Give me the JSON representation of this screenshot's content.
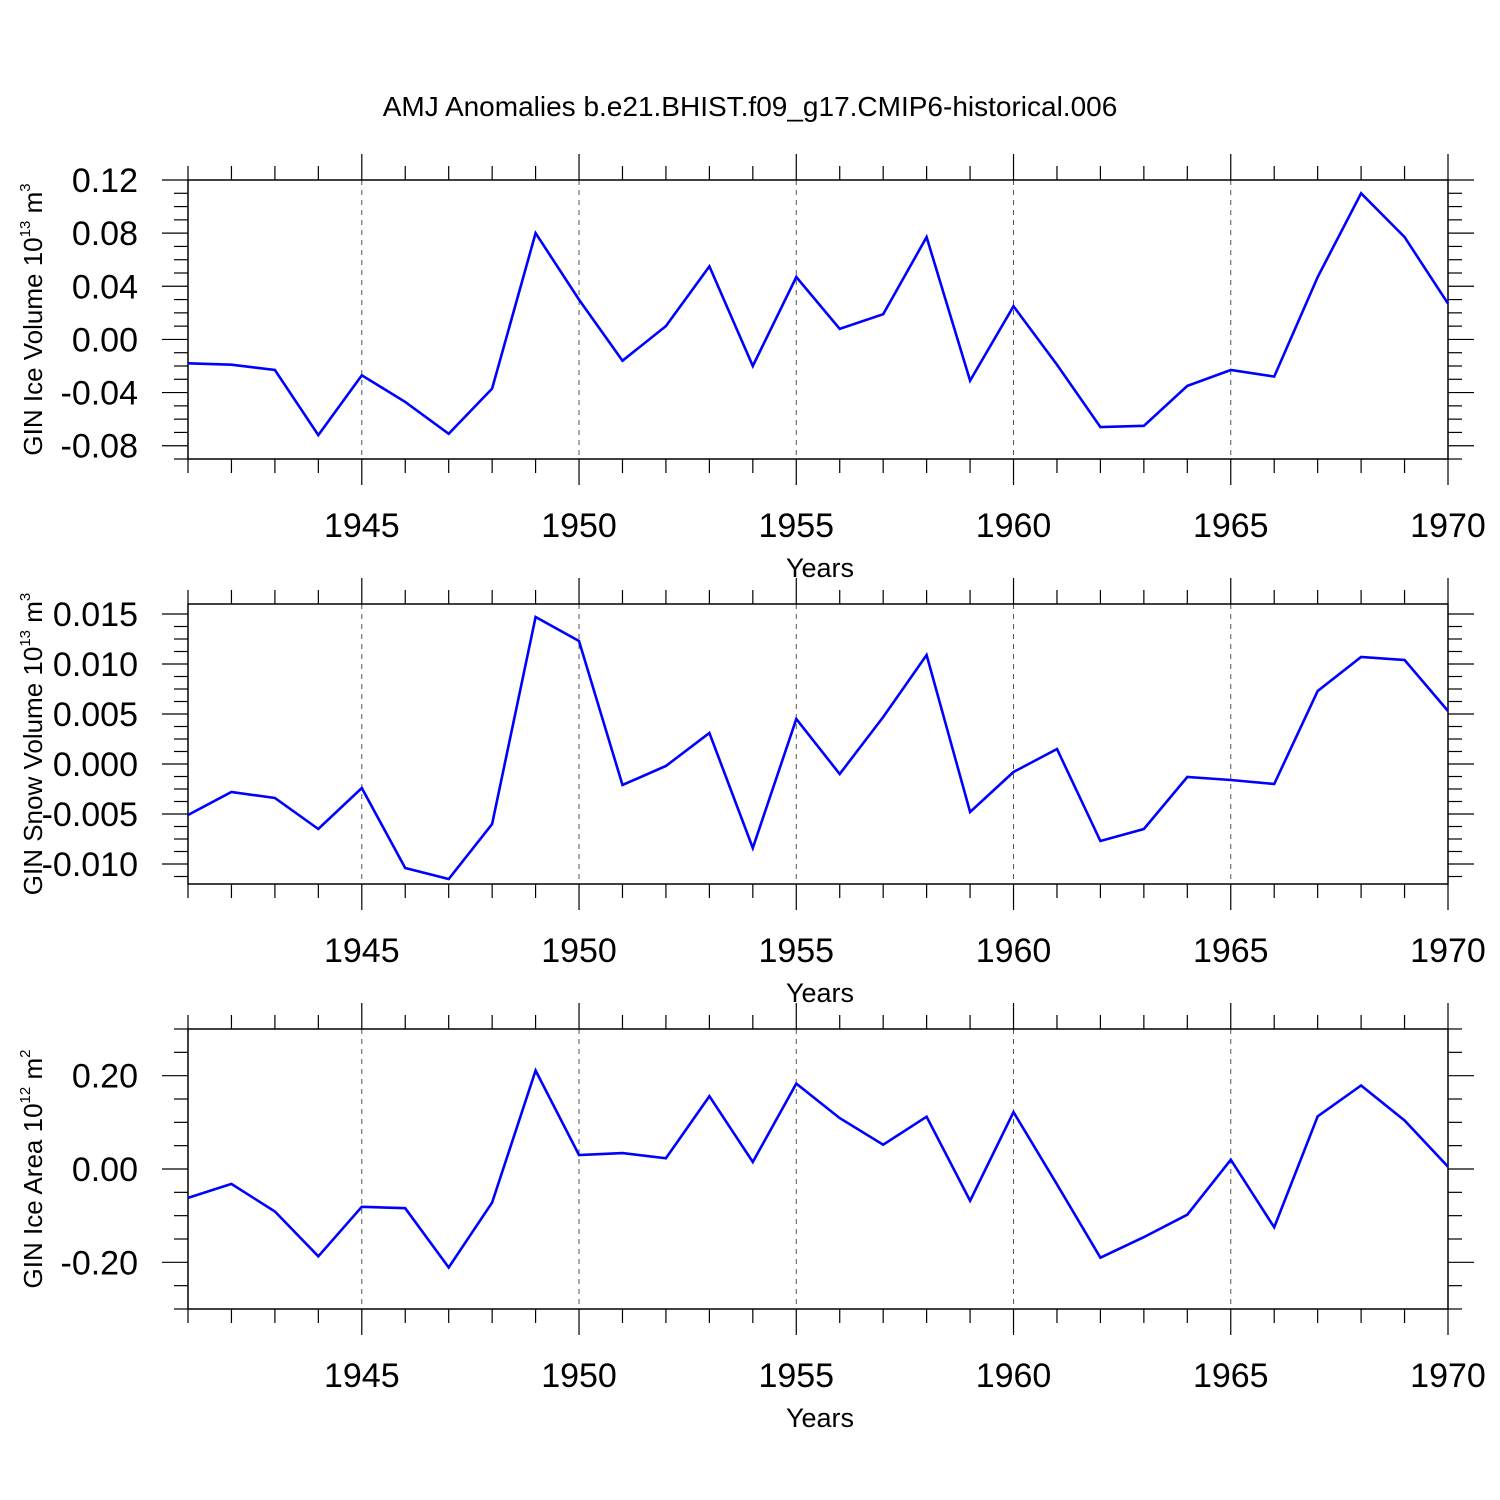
{
  "title": "AMJ Anomalies b.e21.BHIST.f09_g17.CMIP6-historical.006",
  "colors": {
    "line": "#0000ff",
    "axis": "#000000",
    "grid": "#555555"
  },
  "chart_data": [
    {
      "type": "line",
      "title": "AMJ Anomalies b.e21.BHIST.f09_g17.CMIP6-historical.006",
      "xlabel": "Years",
      "ylabel": {
        "text": "GIN Ice Volume 10",
        "exponent": "13",
        "unit": " m",
        "unit_exponent": "3"
      },
      "xlim": [
        1941,
        1970
      ],
      "ylim": [
        -0.09,
        0.12
      ],
      "xticks": [
        1945,
        1950,
        1955,
        1960,
        1965,
        1970
      ],
      "yticks": [
        0.12,
        0.08,
        0.04,
        0.0,
        -0.04,
        -0.08
      ],
      "ytick_labels": [
        "0.12",
        "0.08",
        "0.04",
        "0.00",
        "-0.04",
        "-0.08"
      ],
      "grid": "vertical dashed at major x ticks",
      "series": [
        {
          "x": [
            1941,
            1942,
            1943,
            1944,
            1945,
            1946,
            1947,
            1948,
            1949,
            1950,
            1951,
            1952,
            1953,
            1954,
            1955,
            1956,
            1957,
            1958,
            1959,
            1960,
            1961,
            1962,
            1963,
            1964,
            1965,
            1966,
            1967,
            1968,
            1969,
            1970
          ],
          "values": [
            -0.018,
            -0.019,
            -0.023,
            -0.072,
            -0.027,
            -0.047,
            -0.071,
            -0.037,
            0.08,
            0.03,
            -0.016,
            0.01,
            0.055,
            -0.02,
            0.047,
            0.008,
            0.019,
            0.077,
            -0.031,
            0.025,
            -0.019,
            -0.066,
            -0.065,
            -0.035,
            -0.023,
            -0.028,
            0.047,
            0.11,
            0.077,
            0.027
          ]
        }
      ]
    },
    {
      "type": "line",
      "xlabel": "Years",
      "ylabel": {
        "text": "GIN Snow Volume 10",
        "exponent": "13",
        "unit": " m",
        "unit_exponent": "3"
      },
      "xlim": [
        1941,
        1970
      ],
      "ylim": [
        -0.012,
        0.016
      ],
      "xticks": [
        1945,
        1950,
        1955,
        1960,
        1965,
        1970
      ],
      "yticks": [
        0.015,
        0.01,
        0.005,
        0.0,
        -0.005,
        -0.01
      ],
      "ytick_labels": [
        "0.015",
        "0.010",
        "0.005",
        "0.000",
        "-0.005",
        "-0.010"
      ],
      "grid": "vertical dashed at major x ticks",
      "series": [
        {
          "x": [
            1941,
            1942,
            1943,
            1944,
            1945,
            1946,
            1947,
            1948,
            1949,
            1950,
            1951,
            1952,
            1953,
            1954,
            1955,
            1956,
            1957,
            1958,
            1959,
            1960,
            1961,
            1962,
            1963,
            1964,
            1965,
            1966,
            1967,
            1968,
            1969,
            1970
          ],
          "values": [
            -0.0051,
            -0.0028,
            -0.0034,
            -0.0065,
            -0.0024,
            -0.0104,
            -0.0115,
            -0.006,
            0.0147,
            0.0123,
            -0.0021,
            -0.0002,
            0.0031,
            -0.0084,
            0.0045,
            -0.001,
            0.0047,
            0.0109,
            -0.0048,
            -0.0008,
            0.0015,
            -0.0077,
            -0.0065,
            -0.0013,
            -0.0016,
            -0.002,
            0.0073,
            0.0107,
            0.0104,
            0.0053
          ]
        }
      ]
    },
    {
      "type": "line",
      "xlabel": "Years",
      "ylabel": {
        "text": "GIN Ice Area 10",
        "exponent": "12",
        "unit": " m",
        "unit_exponent": "2"
      },
      "xlim": [
        1941,
        1970
      ],
      "ylim": [
        -0.3,
        0.3
      ],
      "xticks": [
        1945,
        1950,
        1955,
        1960,
        1965,
        1970
      ],
      "yticks": [
        0.2,
        0.0,
        -0.2
      ],
      "ytick_labels": [
        "0.20",
        "0.00",
        "-0.20"
      ],
      "grid": "vertical dashed at major x ticks",
      "series": [
        {
          "x": [
            1941,
            1942,
            1943,
            1944,
            1945,
            1946,
            1947,
            1948,
            1949,
            1950,
            1951,
            1952,
            1953,
            1954,
            1955,
            1956,
            1957,
            1958,
            1959,
            1960,
            1961,
            1962,
            1963,
            1964,
            1965,
            1966,
            1967,
            1968,
            1969,
            1970
          ],
          "values": [
            -0.062,
            -0.032,
            -0.091,
            -0.187,
            -0.081,
            -0.084,
            -0.211,
            -0.072,
            0.211,
            0.03,
            0.034,
            0.023,
            0.156,
            0.015,
            0.183,
            0.109,
            0.052,
            0.112,
            -0.068,
            0.122,
            -0.033,
            -0.19,
            -0.146,
            -0.098,
            0.02,
            -0.125,
            0.113,
            0.179,
            0.104,
            0.005
          ]
        }
      ]
    }
  ]
}
